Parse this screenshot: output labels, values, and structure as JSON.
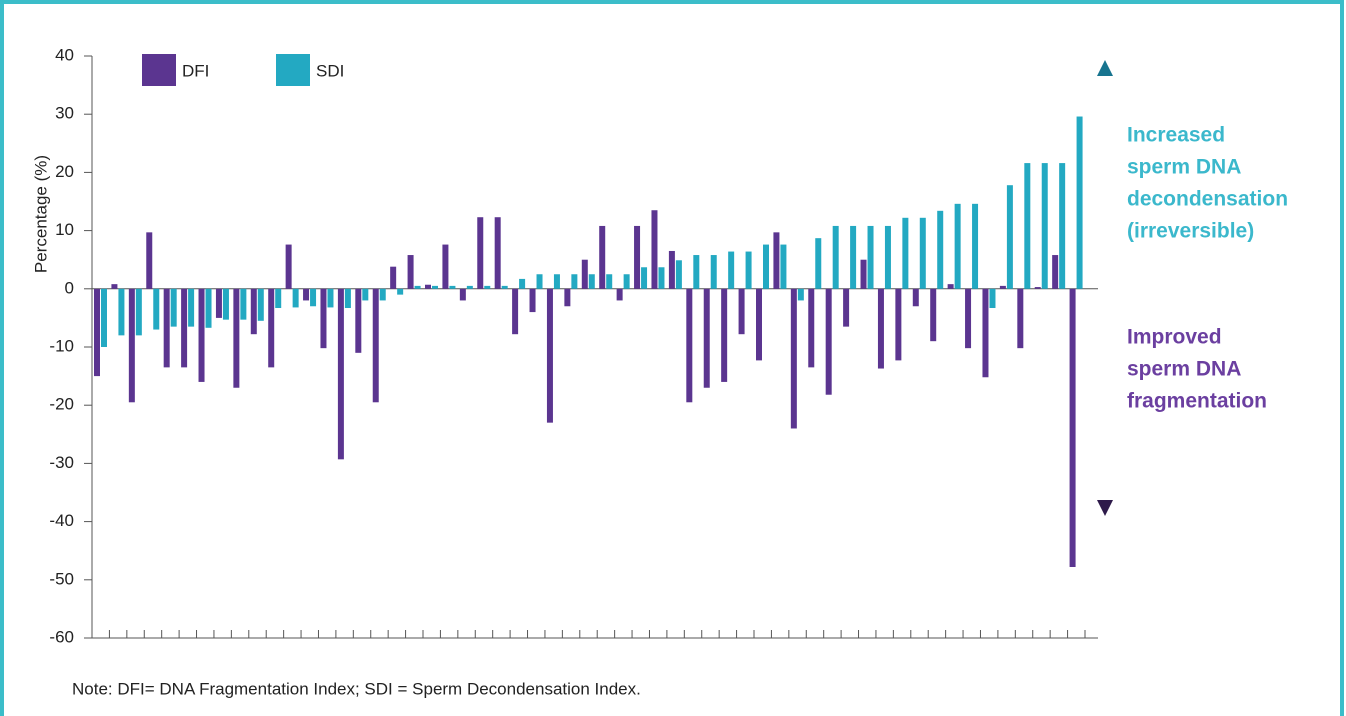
{
  "chart_data": {
    "type": "bar",
    "y_label": "Percentage (%)",
    "ylim": [
      -60,
      40
    ],
    "yticks": [
      40,
      30,
      20,
      10,
      0,
      -10,
      -20,
      -30,
      -40,
      -50,
      -60
    ],
    "legend": "top-left",
    "series": [
      {
        "name": "DFI",
        "color": "#5b3590",
        "values": [
          -15,
          0.8,
          -19.5,
          9.7,
          -13.5,
          -13.5,
          -16,
          -5,
          -17,
          -7.8,
          -13.5,
          7.6,
          -2,
          -10.2,
          -29.3,
          -11,
          -19.5,
          3.8,
          5.8,
          0.7,
          7.6,
          -2,
          12.3,
          12.3,
          -7.8,
          -4,
          -23,
          -3,
          5,
          10.8,
          -2,
          10.8,
          13.5,
          6.5,
          -19.5,
          -17,
          -16,
          -7.8,
          -12.3,
          9.7,
          -24,
          -13.5,
          -18.2,
          -6.5,
          5,
          -13.7,
          -12.3,
          -3,
          -9,
          0.8,
          -10.2,
          -15.2,
          0.5,
          -10.2,
          0.3,
          5.8,
          -47.8
        ]
      },
      {
        "name": "SDI",
        "color": "#23a9c2",
        "values": [
          -10,
          -8,
          -8,
          -7,
          -6.5,
          -6.5,
          -6.7,
          -5.3,
          -5.3,
          -5.5,
          -3.3,
          -3.2,
          -3,
          -3.2,
          -3.3,
          -2,
          -2,
          -1,
          0.5,
          0.5,
          0.5,
          0.5,
          0.5,
          0.5,
          1.7,
          2.5,
          2.5,
          2.5,
          2.5,
          2.5,
          2.5,
          3.7,
          3.7,
          4.9,
          5.8,
          5.8,
          6.4,
          6.4,
          7.6,
          7.6,
          -2,
          8.7,
          10.8,
          10.8,
          10.8,
          10.8,
          12.2,
          12.2,
          13.4,
          14.6,
          14.6,
          -3.3,
          17.8,
          21.6,
          21.6,
          21.6,
          29.6
        ]
      }
    ],
    "annotations": [
      {
        "lines": [
          "Increased",
          "sperm DNA",
          "decondensation",
          "(irreversible)"
        ],
        "color": "#3bb8cc"
      },
      {
        "lines": [
          "Improved",
          "sperm DNA",
          "fragmentation"
        ],
        "color": "#6b3fa0"
      }
    ],
    "note": "Note: DFI= DNA Fragmentation Index; SDI = Sperm Decondensation Index."
  }
}
